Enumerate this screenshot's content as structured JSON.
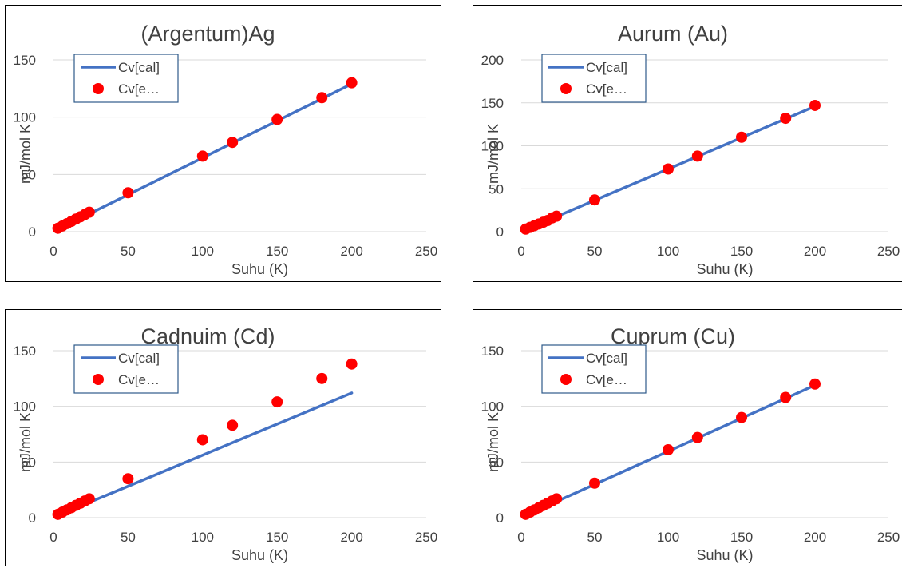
{
  "chart_data": [
    {
      "type": "line",
      "title": "(Argentum)Ag",
      "xlabel": "Suhu (K)",
      "ylabel": "mJ/mol K",
      "xlim": [
        0,
        250
      ],
      "ylim": [
        0,
        150
      ],
      "xticks": [
        0,
        50,
        100,
        150,
        200,
        250
      ],
      "yticks": [
        0,
        50,
        100,
        150
      ],
      "grid": "horizontal",
      "legend_position": "top-left",
      "series": [
        {
          "name": "Cv[cal]",
          "style": "line",
          "color": "#4472C4",
          "x": [
            3,
            200
          ],
          "y": [
            2.0,
            129.0
          ]
        },
        {
          "name": "Cv[e…",
          "style": "marker",
          "color": "#FF0000",
          "x": [
            3,
            6,
            9,
            12,
            15,
            18,
            21,
            24,
            50,
            100,
            120,
            150,
            180,
            200
          ],
          "y": [
            3,
            5,
            7,
            9,
            11,
            13,
            15,
            17,
            34,
            66,
            78,
            98,
            117,
            130
          ]
        }
      ]
    },
    {
      "type": "line",
      "title": "Aurum (Au)",
      "xlabel": "Suhu (K)",
      "ylabel": "mJ/mol K",
      "xlim": [
        0,
        250
      ],
      "ylim": [
        0,
        200
      ],
      "xticks": [
        0,
        50,
        100,
        150,
        200,
        250
      ],
      "yticks": [
        0,
        50,
        100,
        150,
        200
      ],
      "grid": "horizontal",
      "legend_position": "top-left",
      "series": [
        {
          "name": "Cv[cal]",
          "style": "line",
          "color": "#4472C4",
          "x": [
            3,
            200
          ],
          "y": [
            2.2,
            146.0
          ]
        },
        {
          "name": "Cv[e…",
          "style": "marker",
          "color": "#FF0000",
          "x": [
            3,
            6,
            9,
            12,
            15,
            18,
            21,
            24,
            50,
            100,
            120,
            150,
            180,
            200
          ],
          "y": [
            3,
            5,
            7,
            9,
            11,
            13,
            16,
            18,
            37,
            73,
            88,
            110,
            132,
            147
          ]
        }
      ]
    },
    {
      "type": "line",
      "title": "Cadnuim (Cd)",
      "xlabel": "Suhu (K)",
      "ylabel": "mJ/mol K",
      "xlim": [
        0,
        250
      ],
      "ylim": [
        0,
        150
      ],
      "xticks": [
        0,
        50,
        100,
        150,
        200,
        250
      ],
      "yticks": [
        0,
        50,
        100,
        150
      ],
      "grid": "horizontal",
      "legend_position": "top-left",
      "series": [
        {
          "name": "Cv[cal]",
          "style": "line",
          "color": "#4472C4",
          "x": [
            3,
            200
          ],
          "y": [
            2.0,
            112.0
          ]
        },
        {
          "name": "Cv[e…",
          "style": "marker",
          "color": "#FF0000",
          "x": [
            3,
            6,
            9,
            12,
            15,
            18,
            21,
            24,
            50,
            100,
            120,
            150,
            180,
            200
          ],
          "y": [
            3,
            5,
            7,
            9,
            11,
            13,
            15,
            17,
            35,
            70,
            83,
            104,
            125,
            138
          ]
        }
      ]
    },
    {
      "type": "line",
      "title": "Cuprum (Cu)",
      "xlabel": "Suhu (K)",
      "ylabel": "mJ/mol K",
      "xlim": [
        0,
        250
      ],
      "ylim": [
        0,
        150
      ],
      "xticks": [
        0,
        50,
        100,
        150,
        200,
        250
      ],
      "yticks": [
        0,
        50,
        100,
        150
      ],
      "grid": "horizontal",
      "legend_position": "top-left",
      "series": [
        {
          "name": "Cv[cal]",
          "style": "line",
          "color": "#4472C4",
          "x": [
            3,
            200
          ],
          "y": [
            2.0,
            119.0
          ]
        },
        {
          "name": "Cv[e…",
          "style": "marker",
          "color": "#FF0000",
          "x": [
            3,
            6,
            9,
            12,
            15,
            18,
            21,
            24,
            50,
            100,
            120,
            150,
            180,
            200
          ],
          "y": [
            3,
            5,
            7,
            9,
            11,
            13,
            15,
            17,
            31,
            61,
            72,
            90,
            108,
            120
          ]
        }
      ]
    }
  ]
}
